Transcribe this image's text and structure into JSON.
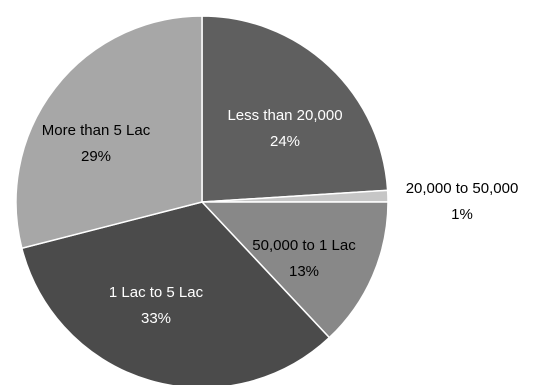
{
  "chart_data": {
    "type": "pie",
    "title": "",
    "slices": [
      {
        "label": "Less than 20,000",
        "value": 24,
        "percent_label": "24%",
        "color": "#5f5f5f",
        "label_color": "#ffffff"
      },
      {
        "label": "20,000 to 50,000",
        "value": 1,
        "percent_label": "1%",
        "color": "#c6c6c6",
        "label_color": "#000000"
      },
      {
        "label": "50,000 to 1 Lac",
        "value": 13,
        "percent_label": "13%",
        "color": "#888888",
        "label_color": "#000000"
      },
      {
        "label": "1 Lac to 5 Lac",
        "value": 33,
        "percent_label": "33%",
        "color": "#4b4b4b",
        "label_color": "#ffffff"
      },
      {
        "label": "More than 5 Lac",
        "value": 29,
        "percent_label": "29%",
        "color": "#a7a7a7",
        "label_color": "#000000"
      }
    ],
    "start_angle_deg": 0,
    "direction": "clockwise",
    "legend": "none",
    "labels_show": "name and percent"
  }
}
